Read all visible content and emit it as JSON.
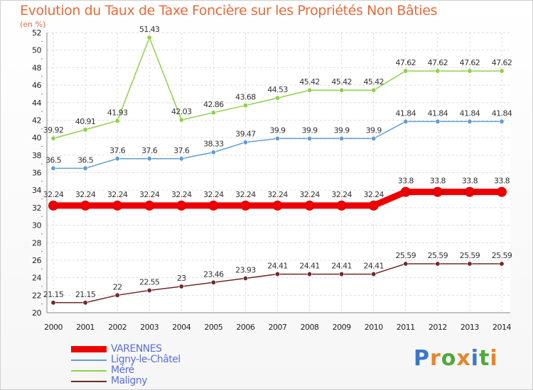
{
  "header": {
    "title": "Evolution du Taux de Taxe Foncière sur les Propriétés Non Bâties",
    "subtitle": "(en %)"
  },
  "logo": {
    "text": "Proxiti",
    "letters": [
      {
        "ch": "P",
        "color": "#3a78c8"
      },
      {
        "ch": "r",
        "color": "#e8852a"
      },
      {
        "ch": "o",
        "color": "#4fa83c"
      },
      {
        "ch": "x",
        "color": "#e8852a"
      },
      {
        "ch": "i",
        "color": "#3a78c8"
      },
      {
        "ch": "t",
        "color": "#4fa83c"
      },
      {
        "ch": "i",
        "color": "#e8852a"
      }
    ]
  },
  "chart_data": {
    "type": "line",
    "title": "Evolution du Taux de Taxe Foncière sur les Propriétés Non Bâties",
    "subtitle": "(en %)",
    "xlabel": "",
    "ylabel": "",
    "x": [
      2000,
      2001,
      2002,
      2003,
      2004,
      2005,
      2006,
      2007,
      2008,
      2009,
      2010,
      2011,
      2012,
      2013,
      2014
    ],
    "x_tick_labels": [
      "2000",
      "2001",
      "2002",
      "2003",
      "2004",
      "2005",
      "2006",
      "2007",
      "2008",
      "2009",
      "2010",
      "2011",
      "2012",
      "2013",
      "2014"
    ],
    "ylim": [
      20,
      52
    ],
    "y_ticks": [
      20,
      22,
      24,
      26,
      28,
      30,
      32,
      34,
      36,
      38,
      40,
      42,
      44,
      46,
      48,
      50,
      52
    ],
    "y_tick_labels": [
      "20",
      "22",
      "24",
      "26",
      "28",
      "30",
      "32",
      "34",
      "36",
      "38",
      "40",
      "42",
      "44",
      "46",
      "48",
      "50",
      "52"
    ],
    "grid": true,
    "legend_position": "bottom-left",
    "series": [
      {
        "name": "VARENNES",
        "color": "#ee0000",
        "emphasis": true,
        "values": [
          32.24,
          32.24,
          32.24,
          32.24,
          32.24,
          32.24,
          32.24,
          32.24,
          32.24,
          32.24,
          32.24,
          33.8,
          33.8,
          33.8,
          33.8
        ],
        "labels": [
          "32.24",
          "32.24",
          "32.24",
          "32.24",
          "32.24",
          "32.24",
          "32.24",
          "32.24",
          "32.24",
          "32.24",
          "32.24",
          "33.8",
          "33.8",
          "33.8",
          "33.8"
        ]
      },
      {
        "name": "Ligny-le-Châtel",
        "color": "#5f9ed6",
        "emphasis": false,
        "values": [
          36.5,
          36.5,
          37.6,
          37.6,
          37.6,
          38.33,
          39.47,
          39.9,
          39.9,
          39.9,
          39.9,
          41.84,
          41.84,
          41.84,
          41.84
        ],
        "labels": [
          "36.5",
          "36.5",
          "37.6",
          "37.6",
          "37.6",
          "38.33",
          "39.47",
          "39.9",
          "39.9",
          "39.9",
          "39.9",
          "41.84",
          "41.84",
          "41.84",
          "41.84"
        ]
      },
      {
        "name": "Méré",
        "color": "#8ed14a",
        "emphasis": false,
        "values": [
          39.92,
          40.91,
          41.93,
          51.43,
          42.03,
          42.86,
          43.68,
          44.53,
          45.42,
          45.42,
          45.42,
          47.62,
          47.62,
          47.62,
          47.62
        ],
        "labels": [
          "39.92",
          "40.91",
          "41.93",
          "51.43",
          "42.03",
          "42.86",
          "43.68",
          "44.53",
          "45.42",
          "45.42",
          "45.42",
          "47.62",
          "47.62",
          "47.62",
          "47.62"
        ]
      },
      {
        "name": "Maligny",
        "color": "#6e2a2a",
        "emphasis": false,
        "values": [
          21.15,
          21.15,
          22,
          22.55,
          23,
          23.46,
          23.93,
          24.41,
          24.41,
          24.41,
          24.41,
          25.59,
          25.59,
          25.59,
          25.59
        ],
        "labels": [
          "21.15",
          "21.15",
          "22",
          "22.55",
          "23",
          "23.46",
          "23.93",
          "24.41",
          "24.41",
          "24.41",
          "24.41",
          "25.59",
          "25.59",
          "25.59",
          "25.59"
        ]
      }
    ]
  }
}
